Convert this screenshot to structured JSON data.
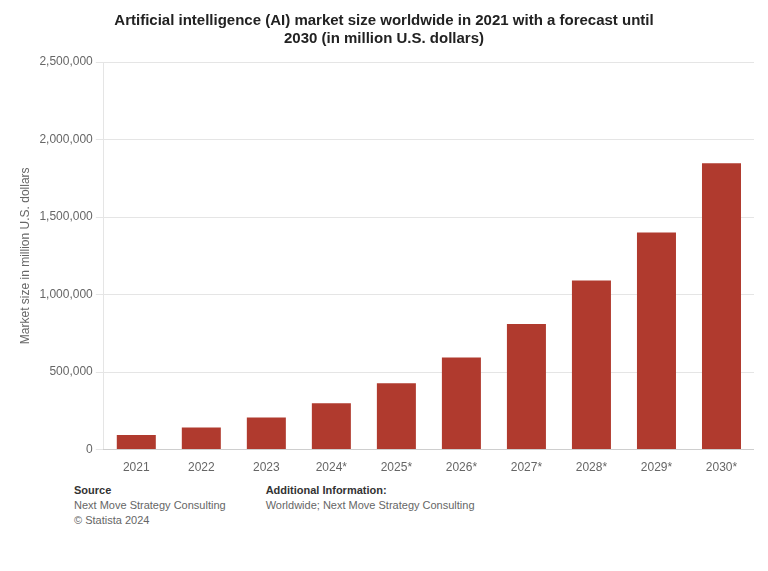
{
  "chart_data": {
    "type": "bar",
    "title": "Artificial intelligence (AI) market size worldwide in 2021 with a forecast until\n2030 (in million U.S. dollars)",
    "ylabel": "Market size in million U.S. dollars",
    "categories": [
      "2021",
      "2022",
      "2023",
      "2024*",
      "2025*",
      "2026*",
      "2027*",
      "2028*",
      "2029*",
      "2030*"
    ],
    "values": [
      93500,
      142300,
      207000,
      298200,
      428000,
      594000,
      810000,
      1090000,
      1400000,
      1847000
    ],
    "color": "#b03a2e",
    "ylim": [
      0,
      2500000
    ],
    "yticks": [
      0,
      {
        "value": 500000,
        "label": "500,000"
      },
      {
        "value": 1000000,
        "label": "1,000,000"
      },
      {
        "value": 1500000,
        "label": "1,500,000"
      },
      {
        "value": 2000000,
        "label": "2,000,000"
      },
      {
        "value": 2500000,
        "label": "2,500,000"
      }
    ],
    "grid": true,
    "annotations": [
      "Source",
      "Next Move Strategy Consulting\n© Statista 2024",
      "Additional Information:",
      "Worldwide; Next Move Strategy Consulting"
    ]
  }
}
